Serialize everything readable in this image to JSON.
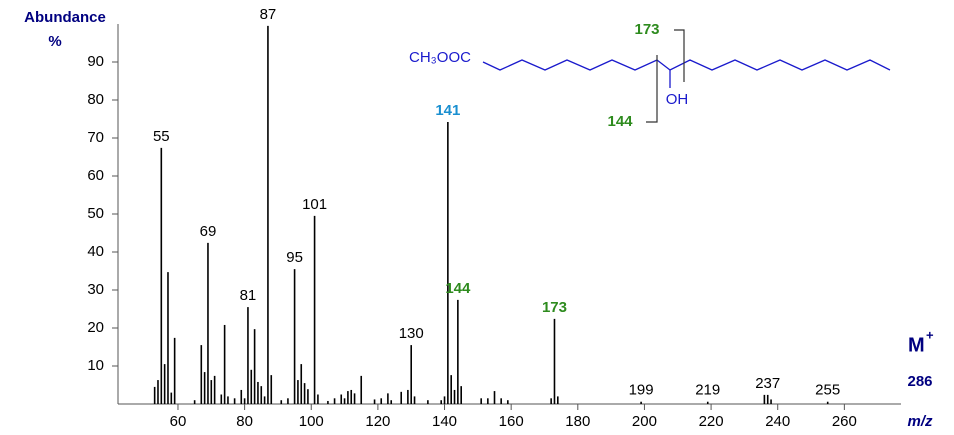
{
  "chart_data": {
    "type": "stick",
    "y_axis_label": "Abundance",
    "y_axis_unit": "%",
    "x_axis_label": "m/z",
    "xlim": [
      42,
      277
    ],
    "ylim": [
      0,
      100
    ],
    "xticks": [
      60,
      80,
      100,
      120,
      140,
      160,
      180,
      200,
      220,
      240,
      260
    ],
    "yticks": [
      10,
      20,
      30,
      40,
      50,
      60,
      70,
      80,
      90
    ],
    "color": "#000000",
    "x": [
      53,
      54,
      55,
      56,
      57,
      58,
      59,
      65,
      67,
      68,
      69,
      70,
      71,
      73,
      74,
      75,
      77,
      79,
      80,
      81,
      82,
      83,
      84,
      85,
      86,
      87,
      88,
      91,
      93,
      95,
      96,
      97,
      98,
      99,
      101,
      102,
      105,
      107,
      109,
      110,
      111,
      112,
      113,
      115,
      119,
      121,
      123,
      124,
      127,
      129,
      130,
      131,
      135,
      139,
      140,
      141,
      142,
      143,
      144,
      145,
      151,
      153,
      155,
      157,
      159,
      172,
      173,
      174,
      199,
      219,
      236,
      237,
      238,
      255
    ],
    "values": [
      4.5,
      6.3,
      67.4,
      10.5,
      34.7,
      3,
      17.4,
      1,
      15.5,
      8.4,
      42.4,
      6.3,
      7.4,
      2.5,
      20.8,
      2,
      1.5,
      3.7,
      1.5,
      25.5,
      9,
      19.7,
      5.8,
      4.7,
      2,
      99.5,
      7.6,
      1,
      1.5,
      35.5,
      6.3,
      10.5,
      5.5,
      3.9,
      49.5,
      2.5,
      0.8,
      1.5,
      2.5,
      1.5,
      3.4,
      3.7,
      2.8,
      7.4,
      1.2,
      1.5,
      2.8,
      1,
      3.2,
      3.7,
      15.5,
      2,
      1,
      1,
      2,
      74.2,
      7.6,
      3.7,
      27.4,
      4.7,
      1.5,
      1.5,
      3.4,
      1.5,
      1,
      1.5,
      22.4,
      2,
      0.6,
      0.6,
      2.4,
      2.4,
      1.2,
      0.6
    ],
    "label_colors": [
      null,
      null,
      "#000000",
      null,
      null,
      null,
      null,
      null,
      null,
      null,
      "#000000",
      null,
      null,
      null,
      null,
      null,
      null,
      null,
      null,
      "#000000",
      null,
      null,
      null,
      null,
      null,
      "#000000",
      null,
      null,
      null,
      "#000000",
      null,
      null,
      null,
      null,
      "#000000",
      null,
      null,
      null,
      null,
      null,
      null,
      null,
      null,
      null,
      null,
      null,
      null,
      null,
      null,
      null,
      "#000000",
      null,
      null,
      null,
      null,
      "#1a8fd0",
      null,
      null,
      "#2e8b1e",
      null,
      null,
      null,
      null,
      null,
      null,
      null,
      "#2e8b1e",
      null,
      "#000000",
      "#000000",
      null,
      "#000000",
      null,
      "#000000"
    ],
    "molecular_ion": {
      "label": "M",
      "charge": "+",
      "mz": 286
    },
    "structure": {
      "ester": "CH₃OOC",
      "hydroxyl": "OH",
      "fragment_a": "173",
      "fragment_b": "144",
      "fragment_color": "#2e8b1e"
    }
  }
}
